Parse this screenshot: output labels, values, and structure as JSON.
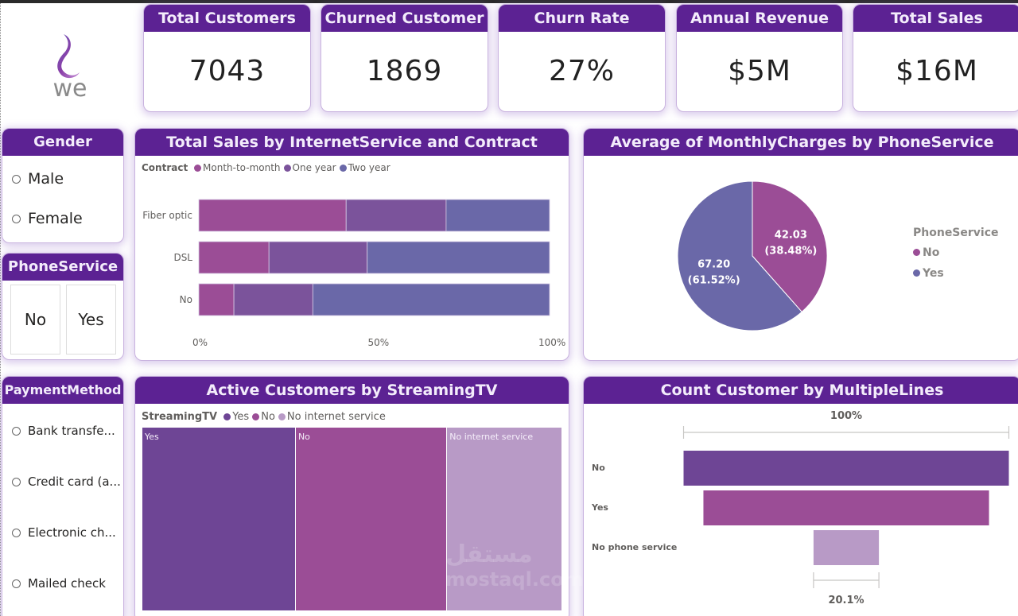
{
  "brand": {
    "logo_text": "we",
    "accent": "#5c2293"
  },
  "kpis": [
    {
      "title": "Total Customers",
      "value": "7043"
    },
    {
      "title": "Churned Customer",
      "value": "1869"
    },
    {
      "title": "Churn Rate",
      "value": "27%"
    },
    {
      "title": "Annual Revenue",
      "value": "$5M"
    },
    {
      "title": "Total Sales",
      "value": "$16M"
    }
  ],
  "slicers": {
    "gender": {
      "title": "Gender",
      "options": [
        "Male",
        "Female"
      ]
    },
    "phone_service": {
      "title": "PhoneService",
      "options": [
        "No",
        "Yes"
      ]
    },
    "payment_method": {
      "title": "PaymentMethod",
      "options": [
        "Bank transfe...",
        "Credit card (a...",
        "Electronic ch...",
        "Mailed check"
      ]
    }
  },
  "watermark": {
    "arabic": "مستقل",
    "latin": "mostaql.com"
  },
  "chart_data": [
    {
      "id": "sales_by_internet_contract",
      "type": "bar",
      "orientation": "horizontal",
      "stacked": "100%",
      "title": "Total Sales by InternetService and Contract",
      "legend_title": "Contract",
      "legend_position": "top-left",
      "categories": [
        "Fiber optic",
        "DSL",
        "No"
      ],
      "series": [
        {
          "name": "Month-to-month",
          "color": "#9b4d96",
          "values": [
            42,
            20,
            10
          ]
        },
        {
          "name": "One year",
          "color": "#7b539b",
          "values": [
            28.5,
            28,
            22.5
          ]
        },
        {
          "name": "Two year",
          "color": "#6a68a8",
          "values": [
            29.5,
            52,
            67.5
          ]
        }
      ],
      "x_ticks": [
        "0%",
        "50%",
        "100%"
      ],
      "xlim": [
        0,
        100
      ]
    },
    {
      "id": "monthly_charges_by_phoneservice",
      "type": "pie",
      "title": "Average of MonthlyCharges by PhoneService",
      "legend_title": "PhoneService",
      "legend_position": "right",
      "slices": [
        {
          "label": "No",
          "value": 42.03,
          "percent": "38.48%",
          "color": "#9b4d96",
          "data_label": "42.03",
          "pct_label": "(38.48%)"
        },
        {
          "label": "Yes",
          "value": 67.2,
          "percent": "61.52%",
          "color": "#6a68a8",
          "data_label": "67.20",
          "pct_label": "(61.52%)"
        }
      ]
    },
    {
      "id": "active_by_streamingtv",
      "type": "treemap",
      "title": "Active Customers by StreamingTV",
      "legend_title": "StreamingTV",
      "legend_position": "top-left",
      "items": [
        {
          "label": "Yes",
          "share": 36.4,
          "color": "#6e4595"
        },
        {
          "label": "No",
          "share": 35.9,
          "color": "#9b4d96"
        },
        {
          "label": "No internet service",
          "share": 27.3,
          "color": "#b89ac6"
        }
      ]
    },
    {
      "id": "count_by_multiplelines",
      "type": "funnel",
      "title": "Count Customer by MultipleLines",
      "categories": [
        "No",
        "Yes",
        "No phone service"
      ],
      "percent_of_first": [
        100,
        87.8,
        20.1
      ],
      "colors": [
        "#6e4595",
        "#9b4d96",
        "#b89ac6"
      ],
      "top_label": "100%",
      "bottom_label": "20.1%"
    }
  ]
}
